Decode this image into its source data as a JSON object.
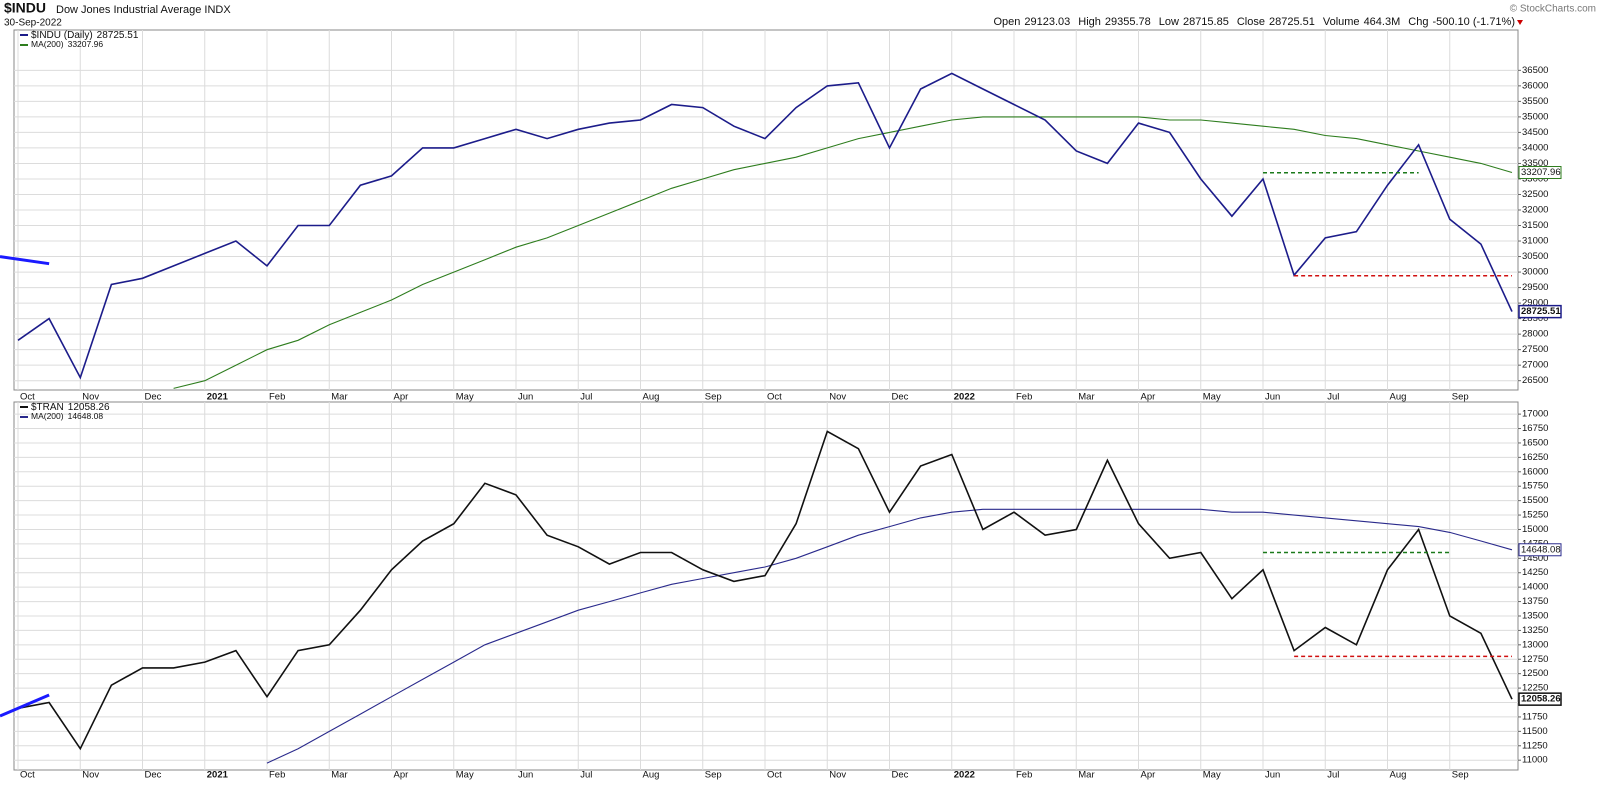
{
  "header": {
    "symbol": "$INDU",
    "name": "Dow Jones Industrial Average INDX",
    "date": "30-Sep-2022",
    "quote": [
      {
        "label": "Open",
        "value": "29123.03"
      },
      {
        "label": "High",
        "value": "29355.78"
      },
      {
        "label": "Low",
        "value": "28715.85"
      },
      {
        "label": "Close",
        "value": "28725.51"
      },
      {
        "label": "Volume",
        "value": "464.3M"
      },
      {
        "label": "Chg",
        "value": "-500.10 (-1.71%)"
      }
    ],
    "credit": "© StockCharts.com"
  },
  "chart_data": [
    {
      "type": "line",
      "categories": [
        "Oct",
        null,
        "Nov",
        null,
        "Dec",
        null,
        "2021",
        null,
        "Feb",
        null,
        "Mar",
        null,
        "Apr",
        null,
        "May",
        null,
        "Jun",
        null,
        "Jul",
        null,
        "Aug",
        null,
        "Sep",
        null,
        "Oct",
        null,
        "Nov",
        null,
        "Dec",
        null,
        "2022",
        null,
        "Feb",
        null,
        "Mar",
        null,
        "Apr",
        null,
        "May",
        null,
        "Jun",
        null,
        "Jul",
        null,
        "Aug",
        null,
        "Sep",
        null,
        null
      ],
      "series": [
        {
          "name": "$INDU (Daily)",
          "color": "#1c1c8a",
          "values": [
            27800,
            28500,
            26600,
            29600,
            29800,
            30200,
            30600,
            31000,
            30200,
            31500,
            31500,
            32800,
            33100,
            34000,
            34000,
            34300,
            34600,
            34300,
            34600,
            34800,
            34900,
            35400,
            35300,
            34700,
            34300,
            35300,
            36000,
            36100,
            34000,
            35900,
            36400,
            35900,
            35400,
            34900,
            33900,
            33500,
            34800,
            34500,
            33000,
            31800,
            33000,
            29900,
            31100,
            31300,
            32800,
            34100,
            31700,
            30900,
            28725.51
          ]
        },
        {
          "name": "MA(200)",
          "color": "#2e7d1e",
          "values": [
            null,
            null,
            null,
            null,
            null,
            26250,
            26500,
            27000,
            27500,
            27800,
            28300,
            28700,
            29100,
            29600,
            30000,
            30400,
            30800,
            31100,
            31500,
            31900,
            32300,
            32700,
            33000,
            33300,
            33500,
            33700,
            34000,
            34300,
            34500,
            34700,
            34900,
            35000,
            35000,
            35000,
            35000,
            35000,
            35000,
            34900,
            34900,
            34800,
            34700,
            34600,
            34400,
            34300,
            34100,
            33900,
            33700,
            33500,
            33207.96
          ]
        }
      ],
      "ylim": [
        26200,
        37800
      ],
      "yticks": [
        26500,
        27000,
        27500,
        28000,
        28500,
        29000,
        29500,
        30000,
        30500,
        31000,
        31500,
        32000,
        32500,
        33000,
        33500,
        34000,
        34500,
        35000,
        35500,
        36000,
        36500
      ],
      "grid": true,
      "lines": [
        {
          "from": 0,
          "to": 1,
          "values": [
            30500,
            30270
          ],
          "color": "#1a1aff",
          "dashed": false
        },
        {
          "from": 40,
          "to": 45,
          "values": [
            33200,
            33200
          ],
          "color": "#1b7a1b",
          "dashed": true
        },
        {
          "from": 41,
          "to": 48,
          "values": [
            29880,
            29880
          ],
          "color": "#d01010",
          "dashed": true
        }
      ]
    },
    {
      "type": "line",
      "categories": [
        "Oct",
        null,
        "Nov",
        null,
        "Dec",
        null,
        "2021",
        null,
        "Feb",
        null,
        "Mar",
        null,
        "Apr",
        null,
        "May",
        null,
        "Jun",
        null,
        "Jul",
        null,
        "Aug",
        null,
        "Sep",
        null,
        "Oct",
        null,
        "Nov",
        null,
        "Dec",
        null,
        "2022",
        null,
        "Feb",
        null,
        "Mar",
        null,
        "Apr",
        null,
        "May",
        null,
        "Jun",
        null,
        "Jul",
        null,
        "Aug",
        null,
        "Sep",
        null,
        null
      ],
      "series": [
        {
          "name": "$TRAN",
          "color": "#111111",
          "values": [
            11900,
            12000,
            11200,
            12300,
            12600,
            12600,
            12700,
            12900,
            12100,
            12900,
            13000,
            13600,
            14300,
            14800,
            15100,
            15800,
            15600,
            14900,
            14700,
            14400,
            14600,
            14600,
            14300,
            14100,
            14200,
            15100,
            16700,
            16400,
            15300,
            16100,
            16300,
            15000,
            15300,
            14900,
            15000,
            16200,
            15100,
            14500,
            14600,
            13800,
            14300,
            12900,
            13300,
            13000,
            14300,
            15000,
            13500,
            13200,
            12058.26
          ]
        },
        {
          "name": "MA(200)",
          "color": "#2a2a8c",
          "values": [
            null,
            null,
            null,
            null,
            null,
            null,
            null,
            null,
            10950,
            11200,
            11500,
            11800,
            12100,
            12400,
            12700,
            13000,
            13200,
            13400,
            13600,
            13750,
            13900,
            14050,
            14150,
            14250,
            14350,
            14500,
            14700,
            14900,
            15050,
            15200,
            15300,
            15350,
            15350,
            15350,
            15350,
            15350,
            15350,
            15350,
            15350,
            15300,
            15300,
            15250,
            15200,
            15150,
            15100,
            15050,
            14950,
            14800,
            14648.08
          ]
        }
      ],
      "ylim": [
        10830,
        17210
      ],
      "yticks": [
        11000,
        11250,
        11500,
        11750,
        12000,
        12250,
        12500,
        12750,
        13000,
        13250,
        13500,
        13750,
        14000,
        14250,
        14500,
        14750,
        15000,
        15250,
        15500,
        15750,
        16000,
        16250,
        16500,
        16750,
        17000
      ],
      "grid": true,
      "lines": [
        {
          "from": 0,
          "to": 1,
          "values": [
            11766,
            12130
          ],
          "color": "#1a1aff",
          "dashed": false
        },
        {
          "from": 40,
          "to": 46,
          "values": [
            14600,
            14600
          ],
          "color": "#1b7a1b",
          "dashed": true
        },
        {
          "from": 41,
          "to": 48,
          "values": [
            12800,
            12800
          ],
          "color": "#d01010",
          "dashed": true
        }
      ]
    }
  ]
}
